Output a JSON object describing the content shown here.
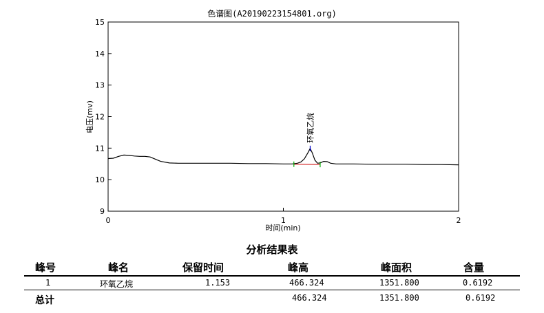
{
  "chart_data": {
    "type": "line",
    "title": "色谱图(A20190223154801.org)",
    "xlabel": "时间(min)",
    "ylabel": "电压(mv)",
    "xlim": [
      0,
      2
    ],
    "ylim": [
      9,
      15
    ],
    "xticks": [
      "0",
      "1",
      "2"
    ],
    "yticks": [
      "9",
      "10",
      "11",
      "12",
      "13",
      "14",
      "15"
    ],
    "grid": false,
    "series": [
      {
        "x": [
          0.0,
          0.03,
          0.06,
          0.09,
          0.12,
          0.15,
          0.18,
          0.21,
          0.24,
          0.27,
          0.3,
          0.35,
          0.4,
          0.5,
          0.6,
          0.7,
          0.8,
          0.9,
          1.0,
          1.05,
          1.08,
          1.1,
          1.12,
          1.14,
          1.153,
          1.165,
          1.18,
          1.195,
          1.21,
          1.23,
          1.25,
          1.27,
          1.3,
          1.4,
          1.5,
          1.6,
          1.7,
          1.8,
          1.9,
          2.0
        ],
        "y": [
          10.67,
          10.68,
          10.74,
          10.78,
          10.77,
          10.75,
          10.74,
          10.74,
          10.72,
          10.65,
          10.58,
          10.53,
          10.52,
          10.52,
          10.52,
          10.52,
          10.51,
          10.51,
          10.5,
          10.5,
          10.52,
          10.56,
          10.66,
          10.85,
          10.99,
          10.85,
          10.62,
          10.52,
          10.53,
          10.58,
          10.57,
          10.52,
          10.5,
          10.5,
          10.49,
          10.49,
          10.49,
          10.48,
          10.48,
          10.47
        ]
      }
    ],
    "peak_annotation": {
      "label": "环氧乙烷",
      "x": 1.153,
      "y": 10.99
    },
    "baseline_segment": {
      "x": [
        1.06,
        1.21
      ],
      "y": [
        10.49,
        10.48
      ]
    },
    "colors": {
      "trace": "#000000",
      "baseline": "#cc0000",
      "marker_start": "#00aa00",
      "marker_peak": "#0000cc",
      "marker_end": "#00aa00"
    }
  },
  "results_table": {
    "title": "分析结果表",
    "headers": [
      "峰号",
      "峰名",
      "保留时间",
      "峰高",
      "峰面积",
      "含量"
    ],
    "rows": [
      [
        "1",
        "环氧乙烷",
        "1.153",
        "466.324",
        "1351.800",
        "0.6192"
      ]
    ],
    "total": [
      "总计",
      "",
      "",
      "466.324",
      "1351.800",
      "0.6192"
    ]
  }
}
